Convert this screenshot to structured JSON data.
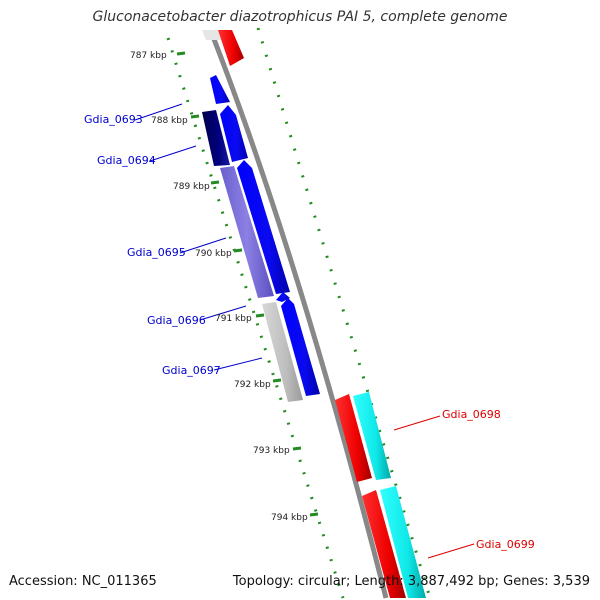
{
  "title": "Gluconacetobacter diazotrophicus PAI 5, complete genome",
  "footer": {
    "accession": "Accession: NC_011365",
    "topology": "Topology: circular; Length: 3,887,492 bp; Genes: 3,539"
  },
  "kbp_labels": [
    "787 kbp",
    "788 kbp",
    "789 kbp",
    "790 kbp",
    "791 kbp",
    "792 kbp",
    "793 kbp",
    "794 kbp"
  ],
  "genes_left": [
    "Gdia_0693",
    "Gdia_0694",
    "Gdia_0695",
    "Gdia_0696",
    "Gdia_0697"
  ],
  "genes_right": [
    "Gdia_0698",
    "Gdia_0699"
  ],
  "colors": {
    "backbone": "#888888",
    "ticks": "#228B22",
    "forward_blue": "#0000ff",
    "dark_navy": "#000066",
    "periwinkle": "#7b6fd6",
    "light_gray": "#c0c0c0",
    "reverse_red": "#ee0000",
    "cyan": "#22eeee",
    "left_label": "#0000cc",
    "right_label": "#dd0000"
  }
}
